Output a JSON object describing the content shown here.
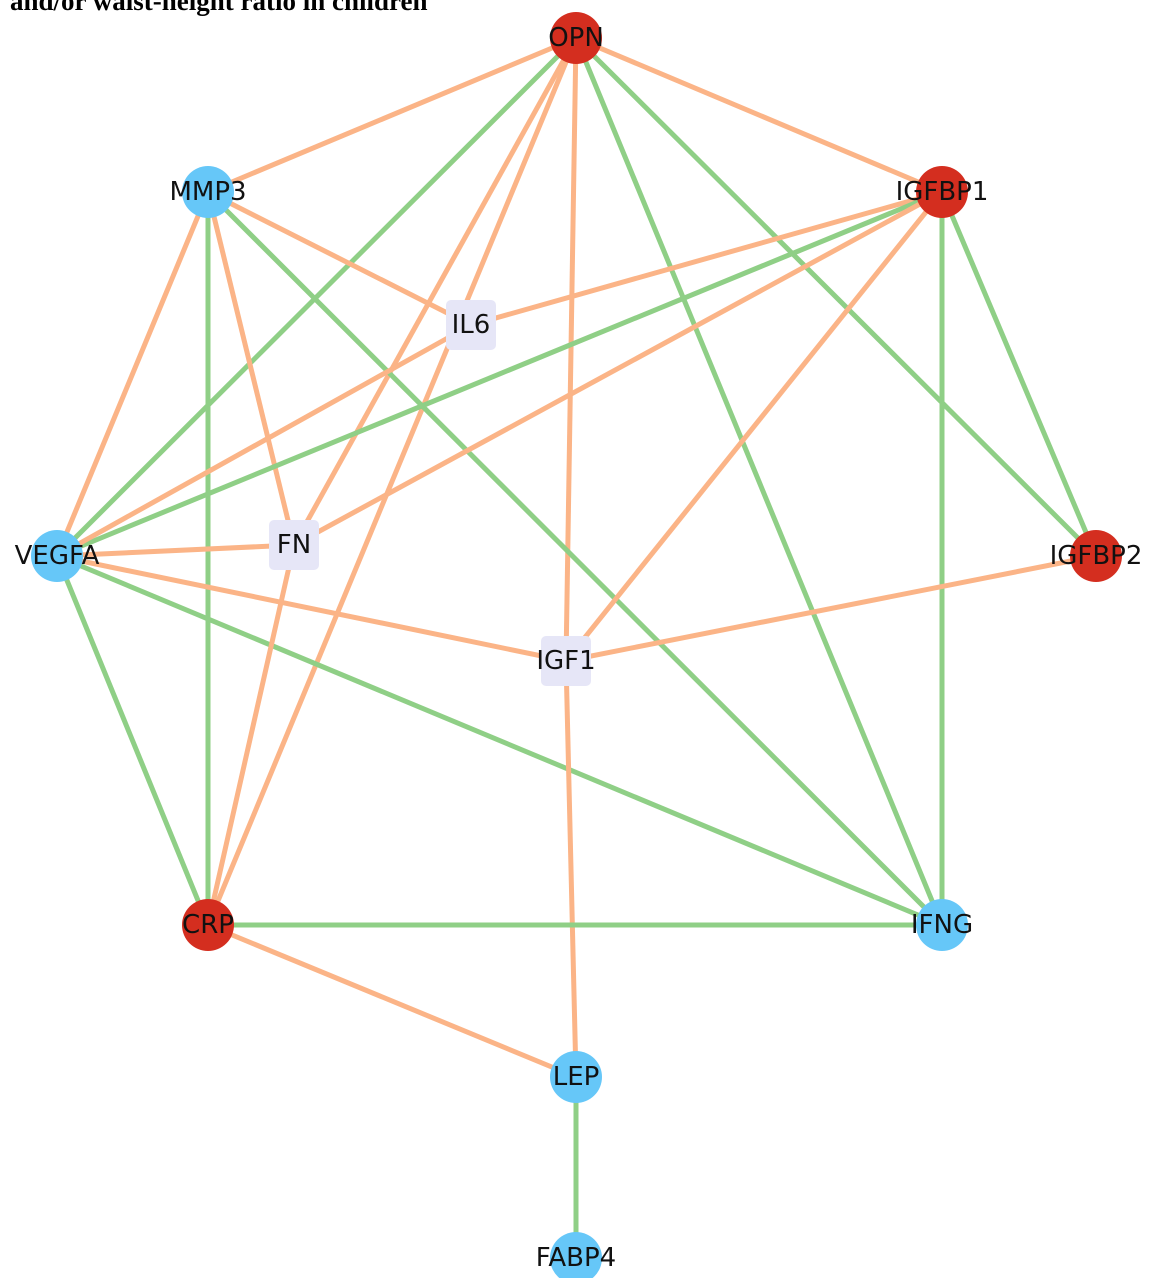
{
  "title": "and/or waist-height ratio in children",
  "colors": {
    "red_node": "#d42e1f",
    "blue_node": "#66c7f8",
    "box_node": "#e6e6f7",
    "orange_edge": "#fbb487",
    "green_edge": "#8fcf86"
  },
  "nodes": [
    {
      "id": "OPN",
      "label": "OPN",
      "kind": "red"
    },
    {
      "id": "MMP3",
      "label": "MMP3",
      "kind": "blue"
    },
    {
      "id": "IGFBP1",
      "label": "IGFBP1",
      "kind": "red"
    },
    {
      "id": "IL6",
      "label": "IL6",
      "kind": "box"
    },
    {
      "id": "VEGFA",
      "label": "VEGFA",
      "kind": "blue"
    },
    {
      "id": "FN",
      "label": "FN",
      "kind": "box"
    },
    {
      "id": "IGFBP2",
      "label": "IGFBP2",
      "kind": "red"
    },
    {
      "id": "IGF1",
      "label": "IGF1",
      "kind": "box"
    },
    {
      "id": "CRP",
      "label": "CRP",
      "kind": "red"
    },
    {
      "id": "IFNG",
      "label": "IFNG",
      "kind": "blue"
    },
    {
      "id": "LEP",
      "label": "LEP",
      "kind": "blue"
    },
    {
      "id": "FABP4",
      "label": "FABP4",
      "kind": "blue"
    }
  ],
  "edges": [
    {
      "source": "OPN",
      "target": "MMP3",
      "color": "orange"
    },
    {
      "source": "OPN",
      "target": "IGFBP1",
      "color": "orange"
    },
    {
      "source": "OPN",
      "target": "VEGFA",
      "color": "green"
    },
    {
      "source": "OPN",
      "target": "FN",
      "color": "orange"
    },
    {
      "source": "OPN",
      "target": "CRP",
      "color": "orange"
    },
    {
      "source": "OPN",
      "target": "IGF1",
      "color": "orange"
    },
    {
      "source": "OPN",
      "target": "IFNG",
      "color": "green"
    },
    {
      "source": "OPN",
      "target": "IGFBP2",
      "color": "green"
    },
    {
      "source": "MMP3",
      "target": "IL6",
      "color": "orange"
    },
    {
      "source": "MMP3",
      "target": "VEGFA",
      "color": "orange"
    },
    {
      "source": "MMP3",
      "target": "CRP",
      "color": "green"
    },
    {
      "source": "MMP3",
      "target": "FN",
      "color": "orange"
    },
    {
      "source": "MMP3",
      "target": "IFNG",
      "color": "green"
    },
    {
      "source": "IGFBP1",
      "target": "IL6",
      "color": "orange"
    },
    {
      "source": "IGFBP1",
      "target": "VEGFA",
      "color": "green"
    },
    {
      "source": "IGFBP1",
      "target": "FN",
      "color": "orange"
    },
    {
      "source": "IGFBP1",
      "target": "IGF1",
      "color": "orange"
    },
    {
      "source": "IGFBP1",
      "target": "IFNG",
      "color": "green"
    },
    {
      "source": "IGFBP1",
      "target": "IGFBP2",
      "color": "green"
    },
    {
      "source": "IL6",
      "target": "VEGFA",
      "color": "orange"
    },
    {
      "source": "VEGFA",
      "target": "FN",
      "color": "orange"
    },
    {
      "source": "VEGFA",
      "target": "IGF1",
      "color": "orange"
    },
    {
      "source": "VEGFA",
      "target": "CRP",
      "color": "green"
    },
    {
      "source": "VEGFA",
      "target": "IFNG",
      "color": "green"
    },
    {
      "source": "FN",
      "target": "CRP",
      "color": "orange"
    },
    {
      "source": "IGFBP2",
      "target": "IGF1",
      "color": "orange"
    },
    {
      "source": "IGF1",
      "target": "LEP",
      "color": "orange"
    },
    {
      "source": "CRP",
      "target": "IFNG",
      "color": "green"
    },
    {
      "source": "CRP",
      "target": "LEP",
      "color": "orange"
    },
    {
      "source": "LEP",
      "target": "FABP4",
      "color": "green"
    }
  ]
}
